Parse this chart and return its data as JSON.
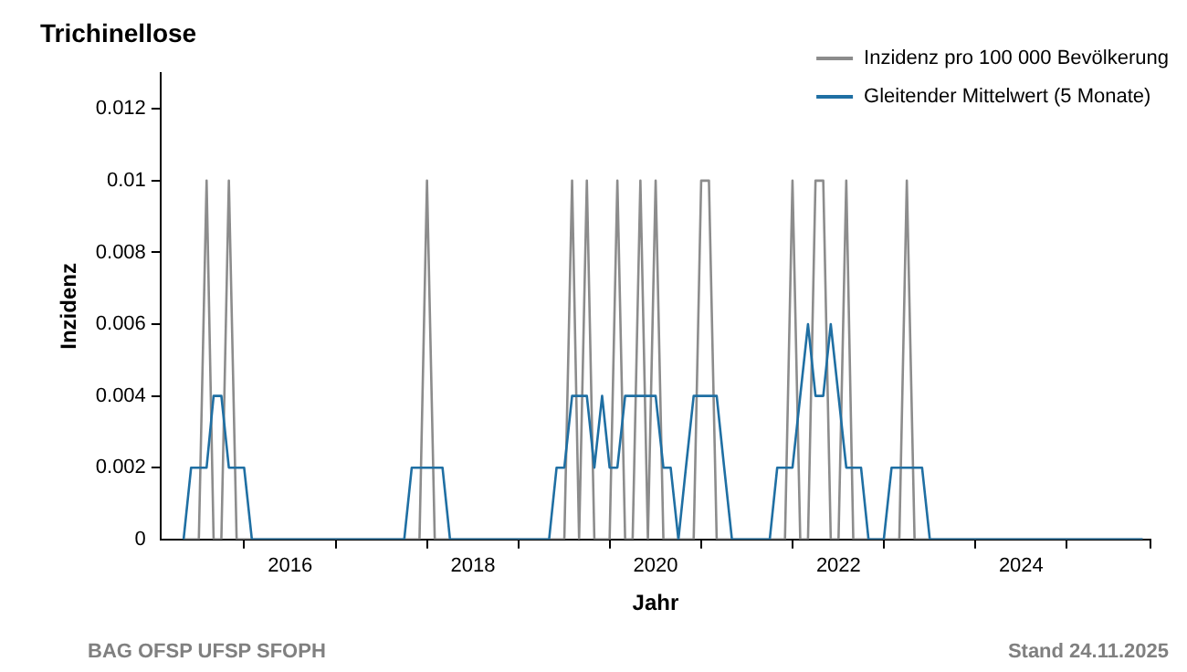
{
  "chart_data": {
    "type": "line",
    "title": "Trichinellose",
    "xlabel": "Jahr",
    "ylabel": "Inzidenz",
    "x": [
      "2014-11",
      "2014-12",
      "2015-01",
      "2015-02",
      "2015-03",
      "2015-04",
      "2015-05",
      "2015-06",
      "2015-07",
      "2015-08",
      "2015-09",
      "2015-10",
      "2015-11",
      "2015-12",
      "2016-01",
      "2016-02",
      "2016-03",
      "2016-04",
      "2016-05",
      "2016-06",
      "2016-07",
      "2016-08",
      "2016-09",
      "2016-10",
      "2016-11",
      "2016-12",
      "2017-01",
      "2017-02",
      "2017-03",
      "2017-04",
      "2017-05",
      "2017-06",
      "2017-07",
      "2017-08",
      "2017-09",
      "2017-10",
      "2017-11",
      "2017-12",
      "2018-01",
      "2018-02",
      "2018-03",
      "2018-04",
      "2018-05",
      "2018-06",
      "2018-07",
      "2018-08",
      "2018-09",
      "2018-10",
      "2018-11",
      "2018-12",
      "2019-01",
      "2019-02",
      "2019-03",
      "2019-04",
      "2019-05",
      "2019-06",
      "2019-07",
      "2019-08",
      "2019-09",
      "2019-10",
      "2019-11",
      "2019-12",
      "2020-01",
      "2020-02",
      "2020-03",
      "2020-04",
      "2020-05",
      "2020-06",
      "2020-07",
      "2020-08",
      "2020-09",
      "2020-10",
      "2020-11",
      "2020-12",
      "2021-01",
      "2021-02",
      "2021-03",
      "2021-04",
      "2021-05",
      "2021-06",
      "2021-07",
      "2021-08",
      "2021-09",
      "2021-10",
      "2021-11",
      "2021-12",
      "2022-01",
      "2022-02",
      "2022-03",
      "2022-04",
      "2022-05",
      "2022-06",
      "2022-07",
      "2022-08",
      "2022-09",
      "2022-10",
      "2022-11",
      "2022-12",
      "2023-01",
      "2023-02",
      "2023-03",
      "2023-04",
      "2023-05",
      "2023-06",
      "2023-07",
      "2023-08",
      "2023-09",
      "2023-10",
      "2023-11",
      "2023-12",
      "2024-01",
      "2024-02",
      "2024-03",
      "2024-04",
      "2024-05",
      "2024-06",
      "2024-07",
      "2024-08",
      "2024-09",
      "2024-10",
      "2024-11",
      "2024-12",
      "2025-01",
      "2025-02",
      "2025-03",
      "2025-04",
      "2025-05"
    ],
    "series": [
      {
        "name": "Inzidenz pro 100 000 Bevölkerung",
        "color": "#8c8c8c",
        "values": [
          0,
          0,
          0,
          0.01,
          0,
          0,
          0.01,
          0,
          0,
          0,
          0,
          0,
          0,
          0,
          0,
          0,
          0,
          0,
          0,
          0,
          0,
          0,
          0,
          0,
          0,
          0,
          0,
          0,
          0,
          0,
          0,
          0,
          0.01,
          0,
          0,
          0,
          0,
          0,
          0,
          0,
          0,
          0,
          0,
          0,
          0,
          0,
          0,
          0,
          0,
          0,
          0,
          0.01,
          0,
          0.01,
          0,
          0,
          0,
          0.01,
          0,
          0,
          0.01,
          0,
          0.01,
          0,
          0,
          0,
          0,
          0,
          0.01,
          0.01,
          0,
          0,
          0,
          0,
          0,
          0,
          0,
          0,
          0,
          0,
          0.01,
          0,
          0,
          0.01,
          0.01,
          0,
          0,
          0.01,
          0,
          0,
          0,
          0,
          0,
          0,
          0,
          0.01,
          0,
          0,
          0,
          0,
          0,
          0,
          0,
          0,
          0,
          0,
          0,
          0,
          0,
          0,
          0,
          0,
          0,
          0,
          0,
          0,
          0,
          0,
          0,
          0,
          0,
          0,
          0,
          0,
          0,
          0,
          0
        ]
      },
      {
        "name": "Gleitender Mittelwert (5 Monate)",
        "color": "#1f6fa3",
        "values": [
          0,
          0.002,
          0.002,
          0.002,
          0.004,
          0.004,
          0.002,
          0.002,
          0.002,
          0,
          0,
          0,
          0,
          0,
          0,
          0,
          0,
          0,
          0,
          0,
          0,
          0,
          0,
          0,
          0,
          0,
          0,
          0,
          0,
          0,
          0.002,
          0.002,
          0.002,
          0.002,
          0.002,
          0,
          0,
          0,
          0,
          0,
          0,
          0,
          0,
          0,
          0,
          0,
          0,
          0,
          0,
          0.002,
          0.002,
          0.004,
          0.004,
          0.004,
          0.002,
          0.004,
          0.002,
          0.002,
          0.004,
          0.004,
          0.004,
          0.004,
          0.004,
          0.002,
          0.002,
          0,
          0.002,
          0.004,
          0.004,
          0.004,
          0.004,
          0.002,
          0,
          0,
          0,
          0,
          0,
          0,
          0.002,
          0.002,
          0.002,
          0.004,
          0.006,
          0.004,
          0.004,
          0.006,
          0.004,
          0.002,
          0.002,
          0.002,
          0,
          0,
          0,
          0.002,
          0.002,
          0.002,
          0.002,
          0.002,
          0,
          0,
          0,
          0,
          0,
          0,
          0,
          0,
          0,
          0,
          0,
          0,
          0,
          0,
          0,
          0,
          0,
          0,
          0,
          0,
          0,
          0,
          0,
          0,
          0,
          0,
          0,
          0,
          0
        ]
      }
    ],
    "xlim": [
      "2014-08",
      "2025-06"
    ],
    "xticks": [
      {
        "value": "2015-07",
        "label": null
      },
      {
        "value": "2016-01",
        "label": "2016"
      },
      {
        "value": "2016-07",
        "label": null
      },
      {
        "value": "2017-07",
        "label": null
      },
      {
        "value": "2018-01",
        "label": "2018"
      },
      {
        "value": "2018-07",
        "label": null
      },
      {
        "value": "2019-07",
        "label": null
      },
      {
        "value": "2020-01",
        "label": "2020"
      },
      {
        "value": "2020-07",
        "label": null
      },
      {
        "value": "2021-07",
        "label": null
      },
      {
        "value": "2022-01",
        "label": "2022"
      },
      {
        "value": "2022-07",
        "label": null
      },
      {
        "value": "2023-07",
        "label": null
      },
      {
        "value": "2024-01",
        "label": "2024"
      },
      {
        "value": "2024-07",
        "label": null
      },
      {
        "value": "2025-06",
        "label": null
      }
    ],
    "ylim": [
      0,
      0.013
    ],
    "yticks": [
      0,
      0.002,
      0.004,
      0.006,
      0.008,
      0.01,
      0.012
    ],
    "grid": false,
    "legend": "top right",
    "marker": "none",
    "line_style": "solid",
    "annotations": [
      "BAG OFSP UFSP SFOPH",
      "Stand 24.11.2025"
    ]
  }
}
